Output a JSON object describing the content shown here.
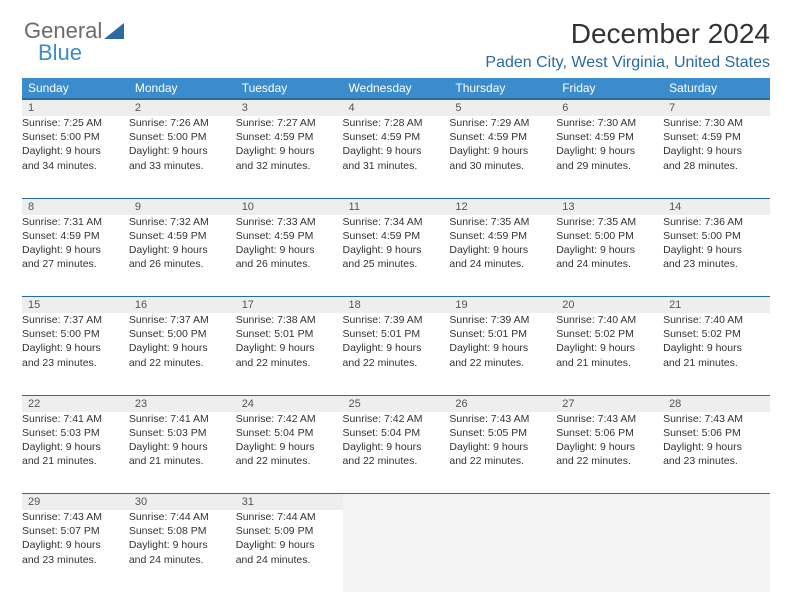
{
  "logo": {
    "word1": "General",
    "word2": "Blue"
  },
  "header": {
    "title": "December 2024",
    "subtitle": "Paden City, West Virginia, United States"
  },
  "colors": {
    "header_bg": "#3a8ccc",
    "header_border": "#2c6aa0",
    "daynum_bg": "#eeeeee",
    "empty_bg": "#f3f3f3",
    "subtitle": "#2c6aa0"
  },
  "weekdays": [
    "Sunday",
    "Monday",
    "Tuesday",
    "Wednesday",
    "Thursday",
    "Friday",
    "Saturday"
  ],
  "weeks": [
    [
      {
        "n": "1",
        "sunrise": "7:25 AM",
        "sunset": "5:00 PM",
        "dl1": "Daylight: 9 hours",
        "dl2": "and 34 minutes."
      },
      {
        "n": "2",
        "sunrise": "7:26 AM",
        "sunset": "5:00 PM",
        "dl1": "Daylight: 9 hours",
        "dl2": "and 33 minutes."
      },
      {
        "n": "3",
        "sunrise": "7:27 AM",
        "sunset": "4:59 PM",
        "dl1": "Daylight: 9 hours",
        "dl2": "and 32 minutes."
      },
      {
        "n": "4",
        "sunrise": "7:28 AM",
        "sunset": "4:59 PM",
        "dl1": "Daylight: 9 hours",
        "dl2": "and 31 minutes."
      },
      {
        "n": "5",
        "sunrise": "7:29 AM",
        "sunset": "4:59 PM",
        "dl1": "Daylight: 9 hours",
        "dl2": "and 30 minutes."
      },
      {
        "n": "6",
        "sunrise": "7:30 AM",
        "sunset": "4:59 PM",
        "dl1": "Daylight: 9 hours",
        "dl2": "and 29 minutes."
      },
      {
        "n": "7",
        "sunrise": "7:30 AM",
        "sunset": "4:59 PM",
        "dl1": "Daylight: 9 hours",
        "dl2": "and 28 minutes."
      }
    ],
    [
      {
        "n": "8",
        "sunrise": "7:31 AM",
        "sunset": "4:59 PM",
        "dl1": "Daylight: 9 hours",
        "dl2": "and 27 minutes."
      },
      {
        "n": "9",
        "sunrise": "7:32 AM",
        "sunset": "4:59 PM",
        "dl1": "Daylight: 9 hours",
        "dl2": "and 26 minutes."
      },
      {
        "n": "10",
        "sunrise": "7:33 AM",
        "sunset": "4:59 PM",
        "dl1": "Daylight: 9 hours",
        "dl2": "and 26 minutes."
      },
      {
        "n": "11",
        "sunrise": "7:34 AM",
        "sunset": "4:59 PM",
        "dl1": "Daylight: 9 hours",
        "dl2": "and 25 minutes."
      },
      {
        "n": "12",
        "sunrise": "7:35 AM",
        "sunset": "4:59 PM",
        "dl1": "Daylight: 9 hours",
        "dl2": "and 24 minutes."
      },
      {
        "n": "13",
        "sunrise": "7:35 AM",
        "sunset": "5:00 PM",
        "dl1": "Daylight: 9 hours",
        "dl2": "and 24 minutes."
      },
      {
        "n": "14",
        "sunrise": "7:36 AM",
        "sunset": "5:00 PM",
        "dl1": "Daylight: 9 hours",
        "dl2": "and 23 minutes."
      }
    ],
    [
      {
        "n": "15",
        "sunrise": "7:37 AM",
        "sunset": "5:00 PM",
        "dl1": "Daylight: 9 hours",
        "dl2": "and 23 minutes."
      },
      {
        "n": "16",
        "sunrise": "7:37 AM",
        "sunset": "5:00 PM",
        "dl1": "Daylight: 9 hours",
        "dl2": "and 22 minutes."
      },
      {
        "n": "17",
        "sunrise": "7:38 AM",
        "sunset": "5:01 PM",
        "dl1": "Daylight: 9 hours",
        "dl2": "and 22 minutes."
      },
      {
        "n": "18",
        "sunrise": "7:39 AM",
        "sunset": "5:01 PM",
        "dl1": "Daylight: 9 hours",
        "dl2": "and 22 minutes."
      },
      {
        "n": "19",
        "sunrise": "7:39 AM",
        "sunset": "5:01 PM",
        "dl1": "Daylight: 9 hours",
        "dl2": "and 22 minutes."
      },
      {
        "n": "20",
        "sunrise": "7:40 AM",
        "sunset": "5:02 PM",
        "dl1": "Daylight: 9 hours",
        "dl2": "and 21 minutes."
      },
      {
        "n": "21",
        "sunrise": "7:40 AM",
        "sunset": "5:02 PM",
        "dl1": "Daylight: 9 hours",
        "dl2": "and 21 minutes."
      }
    ],
    [
      {
        "n": "22",
        "sunrise": "7:41 AM",
        "sunset": "5:03 PM",
        "dl1": "Daylight: 9 hours",
        "dl2": "and 21 minutes."
      },
      {
        "n": "23",
        "sunrise": "7:41 AM",
        "sunset": "5:03 PM",
        "dl1": "Daylight: 9 hours",
        "dl2": "and 21 minutes."
      },
      {
        "n": "24",
        "sunrise": "7:42 AM",
        "sunset": "5:04 PM",
        "dl1": "Daylight: 9 hours",
        "dl2": "and 22 minutes."
      },
      {
        "n": "25",
        "sunrise": "7:42 AM",
        "sunset": "5:04 PM",
        "dl1": "Daylight: 9 hours",
        "dl2": "and 22 minutes."
      },
      {
        "n": "26",
        "sunrise": "7:43 AM",
        "sunset": "5:05 PM",
        "dl1": "Daylight: 9 hours",
        "dl2": "and 22 minutes."
      },
      {
        "n": "27",
        "sunrise": "7:43 AM",
        "sunset": "5:06 PM",
        "dl1": "Daylight: 9 hours",
        "dl2": "and 22 minutes."
      },
      {
        "n": "28",
        "sunrise": "7:43 AM",
        "sunset": "5:06 PM",
        "dl1": "Daylight: 9 hours",
        "dl2": "and 23 minutes."
      }
    ],
    [
      {
        "n": "29",
        "sunrise": "7:43 AM",
        "sunset": "5:07 PM",
        "dl1": "Daylight: 9 hours",
        "dl2": "and 23 minutes."
      },
      {
        "n": "30",
        "sunrise": "7:44 AM",
        "sunset": "5:08 PM",
        "dl1": "Daylight: 9 hours",
        "dl2": "and 24 minutes."
      },
      {
        "n": "31",
        "sunrise": "7:44 AM",
        "sunset": "5:09 PM",
        "dl1": "Daylight: 9 hours",
        "dl2": "and 24 minutes."
      },
      null,
      null,
      null,
      null
    ]
  ]
}
